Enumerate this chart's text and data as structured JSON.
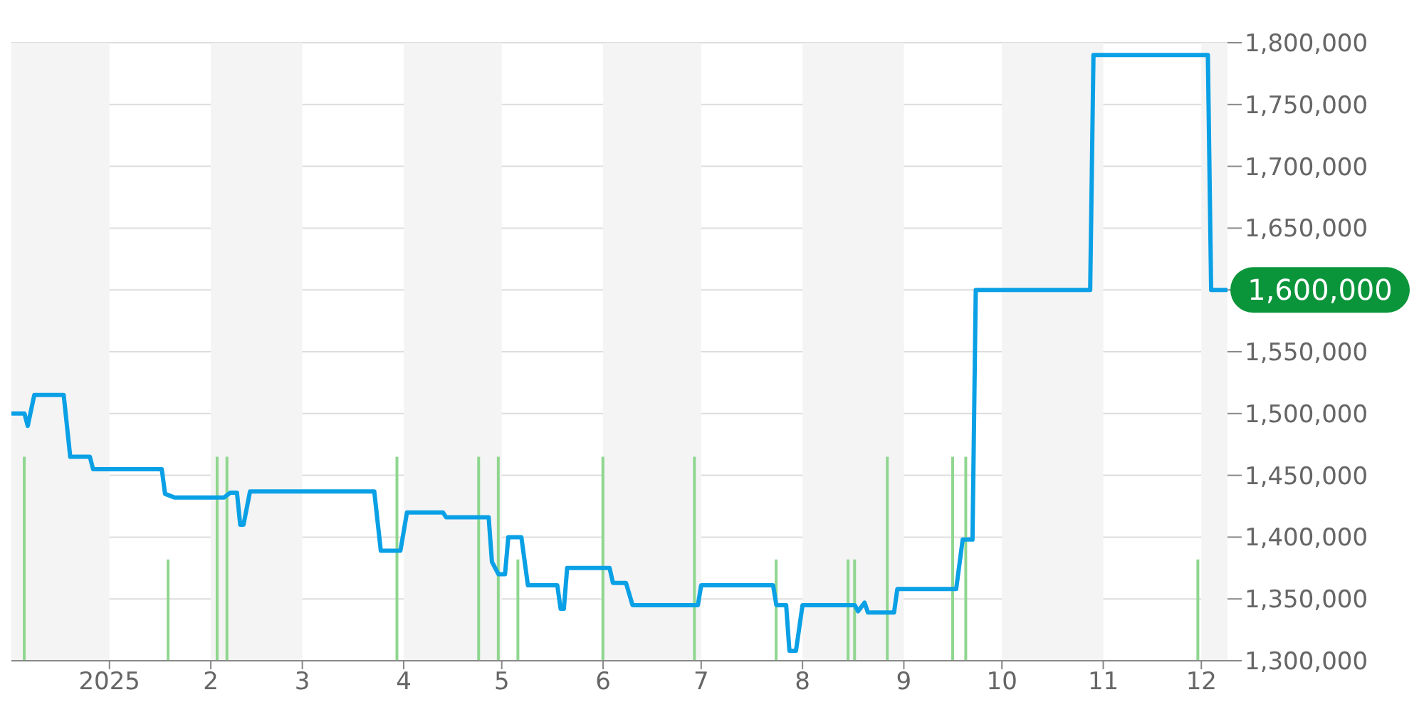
{
  "chart_data": {
    "type": "line",
    "xlim": [
      "2024-12-02",
      "2025-12-09"
    ],
    "xticks": [
      {
        "value": "2025-01-01",
        "label": "2025"
      },
      {
        "value": "2025-02-01",
        "label": "2"
      },
      {
        "value": "2025-03-01",
        "label": "3"
      },
      {
        "value": "2025-04-01",
        "label": "4"
      },
      {
        "value": "2025-05-01",
        "label": "5"
      },
      {
        "value": "2025-06-01",
        "label": "6"
      },
      {
        "value": "2025-07-01",
        "label": "7"
      },
      {
        "value": "2025-08-01",
        "label": "8"
      },
      {
        "value": "2025-09-01",
        "label": "9"
      },
      {
        "value": "2025-10-01",
        "label": "10"
      },
      {
        "value": "2025-11-01",
        "label": "11"
      },
      {
        "value": "2025-12-01",
        "label": "12"
      }
    ],
    "ylim": [
      1300000,
      1800000
    ],
    "yticks": [
      {
        "value": 1300000,
        "label": "1,300,000"
      },
      {
        "value": 1350000,
        "label": "1,350,000"
      },
      {
        "value": 1400000,
        "label": "1,400,000"
      },
      {
        "value": 1450000,
        "label": "1,450,000"
      },
      {
        "value": 1500000,
        "label": "1,500,000"
      },
      {
        "value": 1550000,
        "label": "1,550,000"
      },
      {
        "value": 1600000,
        "label": null
      },
      {
        "value": 1650000,
        "label": "1,650,000"
      },
      {
        "value": 1700000,
        "label": "1,700,000"
      },
      {
        "value": 1750000,
        "label": "1,750,000"
      },
      {
        "value": 1800000,
        "label": "1,800,000"
      }
    ],
    "grid": "y",
    "bands": [
      {
        "axis": "x",
        "from": "2024-12-02",
        "to": "2025-01-01",
        "color": "#f4f4f4"
      },
      {
        "axis": "x",
        "from": "2025-02-01",
        "to": "2025-03-01",
        "color": "#f4f4f4"
      },
      {
        "axis": "x",
        "from": "2025-04-01",
        "to": "2025-05-01",
        "color": "#f4f4f4"
      },
      {
        "axis": "x",
        "from": "2025-06-01",
        "to": "2025-07-01",
        "color": "#f4f4f4"
      },
      {
        "axis": "x",
        "from": "2025-08-01",
        "to": "2025-09-01",
        "color": "#f4f4f4"
      },
      {
        "axis": "x",
        "from": "2025-10-01",
        "to": "2025-11-01",
        "color": "#f4f4f4"
      },
      {
        "axis": "x",
        "from": "2025-12-01",
        "to": "2025-12-09",
        "color": "#f4f4f4"
      }
    ],
    "annotations": [
      {
        "text": "1,600,000",
        "x": "2025-12-09",
        "y": 1600000
      }
    ],
    "series": [
      {
        "type": "bar",
        "color": "#8fd68f",
        "x": [
          "2024-12-06",
          "2025-01-19",
          "2025-02-03",
          "2025-02-06",
          "2025-03-30",
          "2025-04-24",
          "2025-04-30",
          "2025-05-06",
          "2025-06-01",
          "2025-06-29",
          "2025-07-24",
          "2025-08-15",
          "2025-08-17",
          "2025-08-27",
          "2025-09-16",
          "2025-09-20",
          "2025-11-30"
        ],
        "values": [
          1465000,
          1382000,
          1465000,
          1465000,
          1465000,
          1465000,
          1465000,
          1382000,
          1465000,
          1465000,
          1382000,
          1382000,
          1382000,
          1465000,
          1465000,
          1465000,
          1382000
        ]
      },
      {
        "color": "#0aa0e6",
        "x": [
          "2024-12-02",
          "2024-12-06",
          "2024-12-07",
          "2024-12-09",
          "2024-12-18",
          "2024-12-20",
          "2024-12-26",
          "2024-12-27",
          "2025-01-17",
          "2025-01-18",
          "2025-01-21",
          "2025-02-05",
          "2025-02-07",
          "2025-02-09",
          "2025-02-10",
          "2025-02-11",
          "2025-02-13",
          "2025-03-23",
          "2025-03-25",
          "2025-03-31",
          "2025-04-02",
          "2025-04-13",
          "2025-04-14",
          "2025-04-27",
          "2025-04-28",
          "2025-04-30",
          "2025-05-02",
          "2025-05-03",
          "2025-05-07",
          "2025-05-09",
          "2025-05-18",
          "2025-05-19",
          "2025-05-20",
          "2025-05-21",
          "2025-06-03",
          "2025-06-04",
          "2025-06-08",
          "2025-06-10",
          "2025-06-30",
          "2025-07-01",
          "2025-07-23",
          "2025-07-24",
          "2025-07-27",
          "2025-07-28",
          "2025-07-30",
          "2025-08-01",
          "2025-08-17",
          "2025-08-18",
          "2025-08-20",
          "2025-08-21",
          "2025-08-29",
          "2025-08-30",
          "2025-09-17",
          "2025-09-19",
          "2025-09-22",
          "2025-09-23",
          "2025-10-28",
          "2025-10-29",
          "2025-12-03",
          "2025-12-04",
          "2025-12-09"
        ],
        "values": [
          1500000,
          1500000,
          1490000,
          1515000,
          1515000,
          1465000,
          1465000,
          1455000,
          1455000,
          1435000,
          1432000,
          1432000,
          1436000,
          1436000,
          1410000,
          1410000,
          1437000,
          1437000,
          1389000,
          1389000,
          1420000,
          1420000,
          1416000,
          1416000,
          1380000,
          1370000,
          1370000,
          1400000,
          1400000,
          1361000,
          1361000,
          1342000,
          1342000,
          1375000,
          1375000,
          1363000,
          1363000,
          1345000,
          1345000,
          1361000,
          1361000,
          1345000,
          1345000,
          1308000,
          1308000,
          1345000,
          1345000,
          1340000,
          1347000,
          1339000,
          1339000,
          1358000,
          1358000,
          1398000,
          1398000,
          1600000,
          1600000,
          1790000,
          1790000,
          1600000,
          1600000
        ]
      }
    ]
  }
}
